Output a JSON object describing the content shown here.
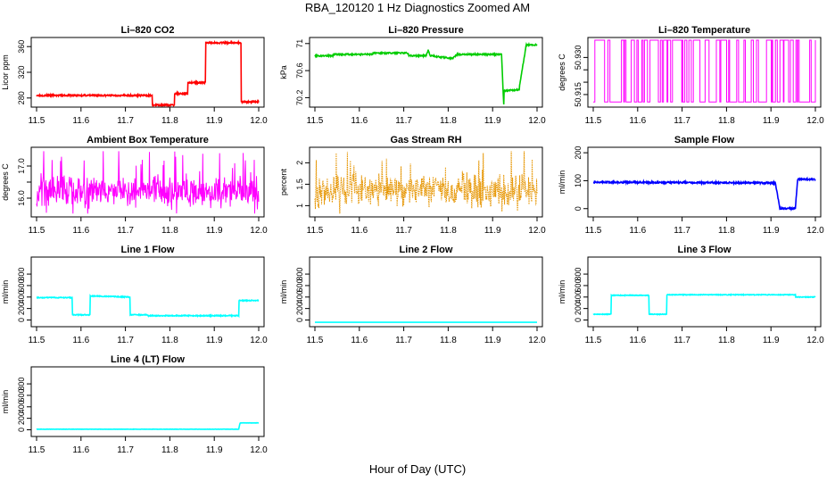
{
  "page": {
    "title": "RBA_120120  1 Hz Diagnostics Zoomed AM",
    "xlabel": "Hour of Day (UTC)"
  },
  "chart_data": [
    {
      "type": "line",
      "title": "Li–820 CO2",
      "ylabel": "Licor ppm",
      "color": "#ff0000",
      "xlim": [
        11.5,
        12.0
      ],
      "ylim": [
        270,
        370
      ],
      "xticks": [
        "11.5",
        "11.6",
        "11.7",
        "11.8",
        "11.9",
        "12.0"
      ],
      "yticks": [
        280,
        320,
        360
      ],
      "noise": 1.2,
      "series": [
        {
          "x": [
            11.5,
            11.76,
            11.76,
            11.81,
            11.81,
            11.84,
            11.84,
            11.88,
            11.88,
            11.96,
            11.96,
            12.0
          ],
          "y": [
            284,
            284,
            269,
            269,
            287,
            287,
            304,
            304,
            366,
            366,
            274,
            274
          ]
        }
      ]
    },
    {
      "type": "line",
      "title": "Li–820 Pressure",
      "ylabel": "kPa",
      "color": "#00cc00",
      "xlim": [
        11.5,
        12.0
      ],
      "ylim": [
        70.1,
        71.05
      ],
      "xticks": [
        "11.5",
        "11.6",
        "11.7",
        "11.8",
        "11.9",
        "12.0"
      ],
      "yticks": [
        70.2,
        70.6,
        71.0
      ],
      "noise": 0.01,
      "series": [
        {
          "x": [
            11.5,
            11.54,
            11.54,
            11.63,
            11.63,
            11.71,
            11.71,
            11.75,
            11.755,
            11.76,
            11.81,
            11.82,
            11.92,
            11.925,
            11.925,
            11.96,
            11.96,
            11.975,
            11.975,
            12.0
          ],
          "y": [
            70.82,
            70.82,
            70.84,
            70.84,
            70.86,
            70.86,
            70.82,
            70.82,
            70.9,
            70.82,
            70.78,
            70.84,
            70.84,
            70.1,
            70.3,
            70.32,
            70.35,
            70.95,
            70.98,
            70.98
          ]
        }
      ]
    },
    {
      "type": "line",
      "title": "Li–820 Temperature",
      "ylabel": "degrees C",
      "color": "#ff00ff",
      "xlim": [
        11.5,
        12.0
      ],
      "ylim": [
        50.911,
        50.937
      ],
      "xticks": [
        "11.5",
        "11.6",
        "11.7",
        "11.8",
        "11.9",
        "12.0"
      ],
      "yticks": [
        50.915,
        50.92,
        50.925,
        50.93
      ],
      "ytick_labels": [
        "50.915",
        "",
        "",
        "50.930"
      ],
      "pattern": "toggle",
      "low": 50.912,
      "high": 50.937,
      "n": 140,
      "seed": 7
    },
    {
      "type": "line",
      "title": "Ambient Box Temperature",
      "ylabel": "degrees C",
      "color": "#ff00ff",
      "xlim": [
        11.5,
        12.0
      ],
      "ylim": [
        15.5,
        17.5
      ],
      "xticks": [
        "11.5",
        "11.6",
        "11.7",
        "11.8",
        "11.9",
        "12.0"
      ],
      "yticks": [
        16.0,
        16.5,
        17.0
      ],
      "ytick_labels": [
        "16.0",
        "",
        "17.0"
      ],
      "pattern": "noise",
      "base": 16.2,
      "amp": 0.55,
      "spike": 1.1,
      "n": 500,
      "seed": 11
    },
    {
      "type": "line",
      "title": "Gas Stream RH",
      "ylabel": "percent",
      "color": "#e69500",
      "xlim": [
        11.5,
        12.0
      ],
      "ylim": [
        0.8,
        2.3
      ],
      "xticks": [
        "11.5",
        "11.6",
        "11.7",
        "11.8",
        "11.9",
        "12.0"
      ],
      "yticks": [
        1.0,
        1.5,
        2.0
      ],
      "pattern": "noise",
      "base": 1.35,
      "amp": 0.45,
      "spike": 0.8,
      "n": 500,
      "seed": 23,
      "dotted": true
    },
    {
      "type": "line",
      "title": "Sample Flow",
      "ylabel": "ml/min",
      "color": "#0000ff",
      "xlim": [
        11.5,
        12.0
      ],
      "ylim": [
        -20,
        210
      ],
      "xticks": [
        "11.5",
        "11.6",
        "11.7",
        "11.8",
        "11.9",
        "12.0"
      ],
      "yticks": [
        0,
        100,
        200
      ],
      "noise": 3,
      "series": [
        {
          "x": [
            11.5,
            11.91,
            11.92,
            11.955,
            11.96,
            12.0
          ],
          "y": [
            95,
            92,
            0,
            0,
            105,
            105
          ]
        }
      ]
    },
    {
      "type": "line",
      "title": "Line 1 Flow",
      "ylabel": "ml/min",
      "color": "#00ffff",
      "xlim": [
        11.5,
        12.0
      ],
      "ylim": [
        -70,
        1050
      ],
      "xticks": [
        "11.5",
        "11.6",
        "11.7",
        "11.8",
        "11.9",
        "12.0"
      ],
      "yticks": [
        0,
        200,
        400,
        600,
        800
      ],
      "noise": 8,
      "series": [
        {
          "x": [
            11.5,
            11.58,
            11.58,
            11.62,
            11.62,
            11.71,
            11.71,
            11.75,
            11.75,
            11.955,
            11.955,
            12.0
          ],
          "y": [
            390,
            390,
            90,
            90,
            420,
            400,
            90,
            90,
            75,
            75,
            340,
            340
          ]
        }
      ]
    },
    {
      "type": "line",
      "title": "Line 2 Flow",
      "ylabel": "ml/min",
      "color": "#00ffff",
      "xlim": [
        11.5,
        12.0
      ],
      "ylim": [
        -70,
        1050
      ],
      "xticks": [
        "11.5",
        "11.6",
        "11.7",
        "11.8",
        "11.9",
        "12.0"
      ],
      "yticks": [
        0,
        200,
        400,
        600,
        800
      ],
      "noise": 0,
      "series": [
        {
          "x": [
            11.5,
            12.0
          ],
          "y": [
            -40,
            -40
          ]
        }
      ]
    },
    {
      "type": "line",
      "title": "Line 3 Flow",
      "ylabel": "ml/min",
      "color": "#00ffff",
      "xlim": [
        11.5,
        12.0
      ],
      "ylim": [
        -70,
        1050
      ],
      "xticks": [
        "11.5",
        "11.6",
        "11.7",
        "11.8",
        "11.9",
        "12.0"
      ],
      "yticks": [
        0,
        200,
        400,
        600,
        800
      ],
      "noise": 6,
      "series": [
        {
          "x": [
            11.5,
            11.54,
            11.54,
            11.625,
            11.625,
            11.665,
            11.665,
            11.955,
            11.955,
            12.0
          ],
          "y": [
            100,
            100,
            430,
            430,
            100,
            100,
            440,
            440,
            400,
            400
          ]
        }
      ]
    },
    {
      "type": "line",
      "title": "Line 4 (LT) Flow",
      "ylabel": "ml/min",
      "color": "#00ffff",
      "xlim": [
        11.5,
        12.0
      ],
      "ylim": [
        -70,
        1050
      ],
      "xticks": [
        "11.5",
        "11.6",
        "11.7",
        "11.8",
        "11.9",
        "12.0"
      ],
      "yticks": [
        0,
        200,
        400,
        600,
        800
      ],
      "noise": 2,
      "series": [
        {
          "x": [
            11.5,
            11.955,
            11.958,
            12.0
          ],
          "y": [
            10,
            10,
            120,
            120
          ]
        }
      ]
    }
  ]
}
